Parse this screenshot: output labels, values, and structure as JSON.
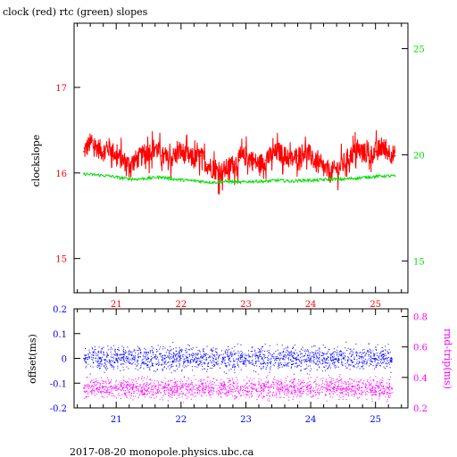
{
  "footer": "2017-08-20  monopole.physics.ubc.ca",
  "colors": {
    "clock": "#ff0000",
    "rtc": "#00dd00",
    "offset": "#0000ff",
    "roundtrip": "#ff00ff",
    "axis": "#000000"
  },
  "chart_data": [
    {
      "type": "line",
      "title": "clock (red) rtc (green) slopes",
      "ylabel": "clockslope",
      "y2label": "",
      "xlim": [
        20.35,
        25.5
      ],
      "ylim": [
        14.6,
        17.75
      ],
      "y2lim": [
        13.5,
        26.2
      ],
      "xticks": [
        21,
        22,
        23,
        24,
        25
      ],
      "yticks": [
        15,
        16,
        17
      ],
      "y2ticks": [
        15,
        20,
        25
      ],
      "tick_labels_x": [
        "21",
        "22",
        "23",
        "24",
        "25"
      ],
      "tick_labels_y": [
        "15",
        "16",
        "17"
      ],
      "tick_labels_y2": [
        "15",
        "20",
        "25"
      ],
      "series": [
        {
          "axis": "left",
          "color": "#ff0000",
          "x": [
            20.5,
            20.55,
            20.6,
            20.7,
            20.8,
            20.9,
            21.0,
            21.1,
            21.2,
            21.3,
            21.4,
            21.5,
            21.6,
            21.7,
            21.8,
            21.9,
            22.0,
            22.1,
            22.2,
            22.3,
            22.4,
            22.5,
            22.6,
            22.7,
            22.8,
            22.9,
            23.0,
            23.1,
            23.2,
            23.3,
            23.4,
            23.5,
            23.6,
            23.7,
            23.8,
            23.9,
            24.0,
            24.1,
            24.2,
            24.3,
            24.4,
            24.5,
            24.6,
            24.7,
            24.8,
            24.9,
            25.0,
            25.1,
            25.2,
            25.3
          ],
          "y": [
            16.25,
            16.3,
            16.35,
            16.3,
            16.25,
            16.3,
            16.2,
            16.15,
            16.1,
            16.15,
            16.2,
            16.25,
            16.3,
            16.2,
            16.15,
            16.2,
            16.25,
            16.2,
            16.15,
            16.2,
            16.1,
            16.05,
            16.0,
            16.05,
            16.1,
            16.15,
            16.2,
            16.15,
            16.1,
            16.15,
            16.2,
            16.25,
            16.2,
            16.15,
            16.2,
            16.25,
            16.2,
            16.1,
            16.05,
            16.0,
            16.05,
            16.1,
            16.2,
            16.25,
            16.25,
            16.2,
            16.25,
            16.3,
            16.25,
            16.2
          ]
        },
        {
          "axis": "right",
          "color": "#00dd00",
          "x": [
            20.5,
            20.7,
            20.9,
            21.1,
            21.3,
            21.5,
            21.7,
            21.9,
            22.1,
            22.3,
            22.5,
            22.7,
            22.9,
            23.1,
            23.3,
            23.5,
            23.7,
            23.9,
            24.1,
            24.3,
            24.5,
            24.7,
            24.9,
            25.1,
            25.3
          ],
          "y": [
            19.1,
            19.05,
            19.0,
            18.9,
            18.85,
            18.9,
            18.95,
            18.85,
            18.8,
            18.75,
            18.7,
            18.75,
            18.7,
            18.75,
            18.75,
            18.8,
            18.75,
            18.8,
            18.8,
            18.85,
            18.85,
            18.9,
            18.95,
            19.0,
            19.0
          ]
        }
      ]
    },
    {
      "type": "scatter",
      "title": "",
      "ylabel": "offset(ms)",
      "y2label": "rnd-trip(ms)",
      "xlim": [
        20.35,
        25.5
      ],
      "ylim": [
        -0.2,
        0.2
      ],
      "y2lim": [
        0.2,
        0.85
      ],
      "xticks": [
        21,
        22,
        23,
        24,
        25
      ],
      "yticks": [
        -0.2,
        -0.1,
        0,
        0.1,
        0.2
      ],
      "y2ticks": [
        0.2,
        0.4,
        0.6,
        0.8
      ],
      "tick_labels_x": [
        "21",
        "22",
        "23",
        "24",
        "25"
      ],
      "tick_labels_y": [
        "-0.2",
        "-0.1",
        "0",
        "0.1",
        "0.2"
      ],
      "tick_labels_y2": [
        "0.2",
        "0.4",
        "0.6",
        "0.8"
      ],
      "series": [
        {
          "axis": "left",
          "color": "#0000ff",
          "x": [
            20.5,
            20.75,
            21.0,
            21.25,
            21.5,
            21.75,
            22.0,
            22.25,
            22.5,
            22.75,
            23.0,
            23.25,
            23.5,
            23.75,
            24.0,
            24.25,
            24.5,
            24.75,
            25.0,
            25.25
          ],
          "y": [
            0.0,
            0.0,
            0.0,
            0.0,
            0.0,
            0.0,
            0.0,
            0.0,
            0.0,
            0.0,
            0.0,
            0.0,
            0.0,
            0.0,
            0.0,
            0.0,
            0.0,
            0.0,
            0.0,
            0.0
          ],
          "spread": 0.035
        },
        {
          "axis": "right",
          "color": "#ff00ff",
          "x": [
            20.5,
            20.75,
            21.0,
            21.25,
            21.5,
            21.75,
            22.0,
            22.25,
            22.5,
            22.75,
            23.0,
            23.25,
            23.5,
            23.75,
            24.0,
            24.25,
            24.5,
            24.75,
            25.0,
            25.25
          ],
          "y": [
            0.33,
            0.33,
            0.33,
            0.33,
            0.33,
            0.33,
            0.33,
            0.33,
            0.33,
            0.33,
            0.33,
            0.33,
            0.33,
            0.33,
            0.33,
            0.33,
            0.33,
            0.33,
            0.33,
            0.33
          ],
          "spread": 0.05
        }
      ]
    }
  ]
}
